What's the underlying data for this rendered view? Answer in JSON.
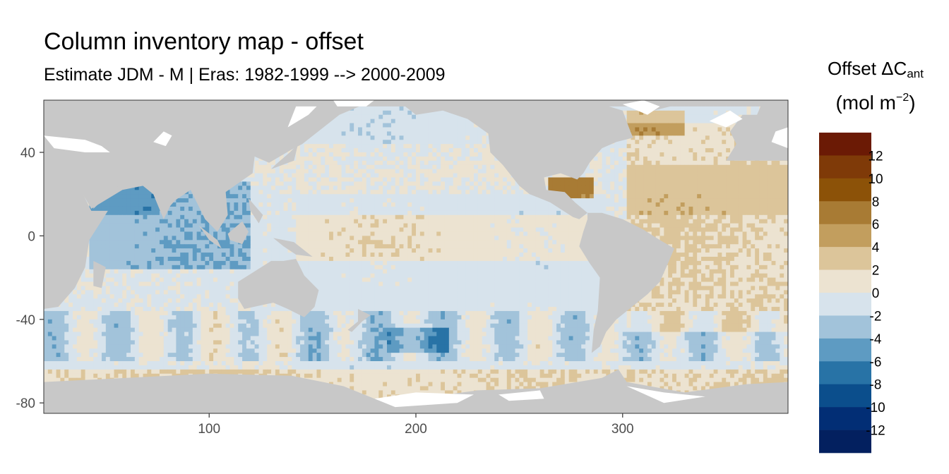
{
  "chart_data": {
    "type": "heatmap",
    "title": "Column inventory map - offset",
    "subtitle": "Estimate JDM - M | Eras: 1982-1999 --> 2000-2009",
    "xlabel": "",
    "ylabel": "",
    "xlim": [
      20,
      380
    ],
    "ylim": [
      -85,
      65
    ],
    "x_ticks": [
      100,
      200,
      300
    ],
    "y_ticks": [
      40,
      0,
      -40,
      -80
    ],
    "grid": false,
    "panel_background": "#c8c8c8",
    "legend": {
      "title_main": "Offset ΔC",
      "title_sub": "ant",
      "unit_open": "(mol m",
      "unit_sup": "−2",
      "unit_close": ")",
      "position": "right",
      "breaks": [
        14,
        12,
        10,
        8,
        6,
        4,
        2,
        0,
        -2,
        -4,
        -6,
        -8,
        -10,
        -12,
        -14
      ],
      "labels": [
        "12",
        "10",
        "8",
        "6",
        "4",
        "2",
        "0",
        "-2",
        "-4",
        "-6",
        "-8",
        "-10",
        "-12"
      ],
      "colors": [
        "#6b1a05",
        "#7f3a08",
        "#8c5208",
        "#a87b34",
        "#c29e5e",
        "#dcc59a",
        "#ece3d1",
        "#d7e3ec",
        "#a2c3da",
        "#5e9bc2",
        "#2873a6",
        "#0b4e8c",
        "#022e75",
        "#03205f"
      ]
    },
    "land_color": "#c8c8c8",
    "missing_color": "#ffffff"
  }
}
